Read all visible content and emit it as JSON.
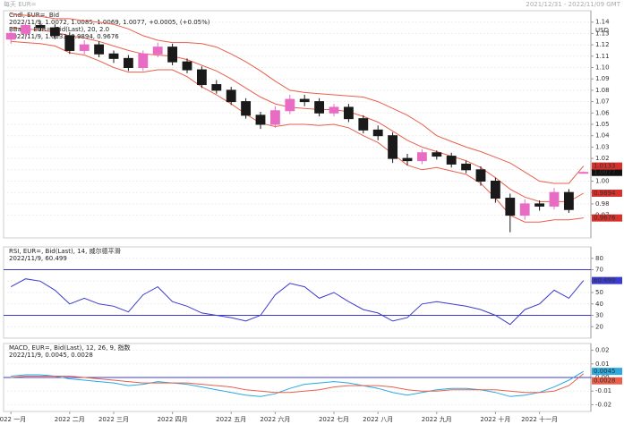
{
  "header": {
    "left": "每天 EUR=",
    "right": "2021/12/31 - 2022/11/09 GMT"
  },
  "chart_data": [
    {
      "type": "candlestick",
      "title": "Cndl, EUR=, Bid",
      "subtitle": "2022/11/9, 1.0072, 1.0085, 1.0069, 1.0077, +0.0005, (+0.05%)",
      "y_unit": "USD",
      "grid": true,
      "color_up": "#e86cc4",
      "color_down": "#1a1a1a",
      "categories": [
        "2022 一月",
        null,
        null,
        null,
        "2022 二月",
        null,
        null,
        "2022 三月",
        null,
        null,
        null,
        "2022 四月",
        null,
        null,
        null,
        "2022 五月",
        null,
        null,
        "2022 六月",
        null,
        null,
        null,
        "2022 七月",
        null,
        null,
        "2022 八月",
        null,
        null,
        null,
        "2022 九月",
        null,
        null,
        null,
        "2022 十月",
        null,
        null,
        "2022 十一月",
        null,
        null,
        null
      ],
      "open": [
        1.125,
        1.13,
        1.137,
        1.135,
        1.128,
        1.115,
        1.12,
        1.112,
        1.108,
        1.1,
        1.112,
        1.118,
        1.105,
        1.098,
        1.085,
        1.08,
        1.07,
        1.058,
        1.05,
        1.062,
        1.072,
        1.07,
        1.06,
        1.065,
        1.055,
        1.045,
        1.04,
        1.02,
        1.018,
        1.025,
        1.022,
        1.015,
        1.01,
        1.0,
        0.985,
        0.97,
        0.98,
        0.978,
        0.99,
        1.0072
      ],
      "high": [
        1.133,
        1.14,
        1.141,
        1.138,
        1.131,
        1.124,
        1.123,
        1.115,
        1.111,
        1.115,
        1.122,
        1.121,
        1.108,
        1.101,
        1.089,
        1.083,
        1.073,
        1.061,
        1.066,
        1.076,
        1.076,
        1.073,
        1.068,
        1.068,
        1.058,
        1.049,
        1.043,
        1.024,
        1.028,
        1.027,
        1.025,
        1.018,
        1.013,
        1.003,
        0.989,
        0.984,
        0.983,
        0.994,
        0.993,
        1.0085
      ],
      "low": [
        1.121,
        1.127,
        1.132,
        1.125,
        1.112,
        1.112,
        1.109,
        1.104,
        1.097,
        1.097,
        1.109,
        1.102,
        1.095,
        1.082,
        1.077,
        1.067,
        1.055,
        1.046,
        1.047,
        1.059,
        1.066,
        1.057,
        1.057,
        1.052,
        1.042,
        1.036,
        1.016,
        1.014,
        1.015,
        1.019,
        1.012,
        1.007,
        0.996,
        0.981,
        0.955,
        0.966,
        0.974,
        0.975,
        0.972,
        1.0069
      ],
      "close": [
        1.13,
        1.137,
        1.135,
        1.128,
        1.115,
        1.12,
        1.112,
        1.108,
        1.1,
        1.112,
        1.118,
        1.105,
        1.098,
        1.085,
        1.08,
        1.07,
        1.058,
        1.05,
        1.062,
        1.072,
        1.07,
        1.06,
        1.065,
        1.055,
        1.045,
        1.04,
        1.02,
        1.018,
        1.025,
        1.022,
        1.015,
        1.01,
        1.0,
        0.985,
        0.97,
        0.98,
        0.978,
        0.99,
        0.975,
        1.0077
      ],
      "overlay": {
        "title": "BBand, EUR=, Bid(Last), 20, 2.0",
        "subtitle": "2022/11/9, 1.0133, 0.9894, 0.9676",
        "color": "#e8604c",
        "upper": [
          1.147,
          1.146,
          1.145,
          1.143,
          1.143,
          1.141,
          1.14,
          1.138,
          1.134,
          1.128,
          1.124,
          1.122,
          1.122,
          1.121,
          1.118,
          1.112,
          1.105,
          1.097,
          1.088,
          1.08,
          1.078,
          1.077,
          1.076,
          1.075,
          1.074,
          1.07,
          1.064,
          1.058,
          1.05,
          1.04,
          1.035,
          1.03,
          1.026,
          1.021,
          1.016,
          1.008,
          1.0,
          0.998,
          0.998,
          1.0133
        ],
        "middle": [
          1.135,
          1.134,
          1.133,
          1.131,
          1.128,
          1.126,
          1.123,
          1.119,
          1.115,
          1.112,
          1.111,
          1.11,
          1.107,
          1.102,
          1.097,
          1.09,
          1.082,
          1.074,
          1.068,
          1.065,
          1.064,
          1.063,
          1.063,
          1.061,
          1.057,
          1.052,
          1.044,
          1.036,
          1.03,
          1.026,
          1.022,
          1.018,
          1.012,
          1.003,
          0.993,
          0.986,
          0.982,
          0.982,
          0.982,
          0.9894
        ],
        "lower": [
          1.123,
          1.122,
          1.121,
          1.119,
          1.113,
          1.111,
          1.106,
          1.1,
          1.096,
          1.096,
          1.098,
          1.098,
          1.092,
          1.083,
          1.076,
          1.068,
          1.059,
          1.051,
          1.048,
          1.05,
          1.05,
          1.049,
          1.05,
          1.047,
          1.04,
          1.034,
          1.024,
          1.014,
          1.01,
          1.012,
          1.009,
          1.006,
          0.998,
          0.985,
          0.97,
          0.964,
          0.964,
          0.966,
          0.966,
          0.9676
        ]
      },
      "ylim": [
        0.95,
        1.15
      ],
      "yticks": [
        0.97,
        0.98,
        0.99,
        {
          "value": 1,
          "label": "1.00"
        },
        1.01,
        1.02,
        1.03,
        1.04,
        1.05,
        1.06,
        1.07,
        1.08,
        1.09,
        {
          "value": 1.1,
          "label": "1.10"
        },
        1.11,
        1.12,
        1.13,
        1.14
      ]
    },
    {
      "type": "line",
      "title": "RSI, EUR=, Bid(Last), 14, 威尔德平滑",
      "subtitle": "2022/11/9, 60.499",
      "grid": true,
      "series": [
        {
          "color": "#3b3bd0",
          "values": [
            55,
            62,
            60,
            52,
            40,
            45,
            40,
            38,
            33,
            48,
            55,
            42,
            38,
            32,
            30,
            28,
            25,
            30,
            48,
            58,
            55,
            45,
            50,
            42,
            35,
            32,
            25,
            28,
            40,
            42,
            40,
            38,
            35,
            30,
            22,
            35,
            40,
            52,
            45,
            60.499
          ]
        }
      ],
      "levels": [
        70,
        30
      ],
      "level_color": "#3b3bd0",
      "ylim": [
        10,
        90
      ],
      "yticks": [
        20,
        30,
        40,
        50,
        60,
        70,
        80
      ]
    },
    {
      "type": "line",
      "title": "MACD, EUR=, Bid(Last), 12, 26, 9, 指数",
      "subtitle": "2022/11/9, 0.0045, 0.0028",
      "grid": true,
      "series": [
        {
          "color": "#2aa8e0",
          "values": [
            0.001,
            0.002,
            0.002,
            0.001,
            -0.001,
            -0.002,
            -0.003,
            -0.004,
            -0.006,
            -0.005,
            -0.003,
            -0.004,
            -0.005,
            -0.007,
            -0.009,
            -0.011,
            -0.013,
            -0.014,
            -0.012,
            -0.008,
            -0.005,
            -0.004,
            -0.003,
            -0.004,
            -0.006,
            -0.008,
            -0.011,
            -0.013,
            -0.011,
            -0.009,
            -0.008,
            -0.008,
            -0.009,
            -0.011,
            -0.014,
            -0.013,
            -0.011,
            -0.007,
            -0.002,
            0.0045
          ]
        },
        {
          "color": "#e8604c",
          "values": [
            0,
            0.001,
            0.001,
            0.001,
            0.001,
            0,
            -0.001,
            -0.002,
            -0.003,
            -0.004,
            -0.004,
            -0.004,
            -0.004,
            -0.005,
            -0.006,
            -0.007,
            -0.009,
            -0.01,
            -0.011,
            -0.011,
            -0.01,
            -0.009,
            -0.007,
            -0.006,
            -0.006,
            -0.006,
            -0.007,
            -0.009,
            -0.01,
            -0.01,
            -0.009,
            -0.009,
            -0.009,
            -0.009,
            -0.01,
            -0.011,
            -0.011,
            -0.01,
            -0.006,
            0.0028
          ]
        }
      ],
      "levels": [
        0
      ],
      "level_color": "#3b3bd0",
      "ylim": [
        -0.025,
        0.025
      ],
      "yticks": [
        -0.02,
        -0.01,
        {
          "value": 0,
          "label": "0.00"
        },
        0.01,
        0.02
      ]
    }
  ]
}
